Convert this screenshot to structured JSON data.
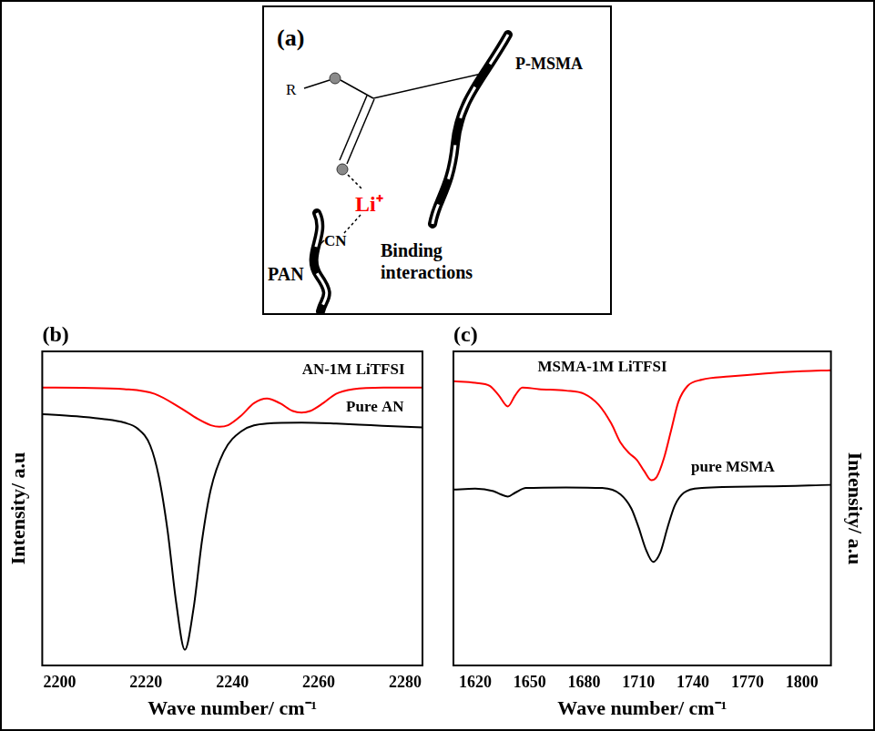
{
  "diagram": {
    "panel": "(a)",
    "substituent": "R",
    "polymer_1": "P-MSMA",
    "ion": "Li⁺",
    "group": "CN",
    "polymer_2": "PAN",
    "caption": "Binding interactions"
  },
  "chart_data": [
    {
      "type": "line",
      "panel": "(b)",
      "x_label": "Wave number/ cm⁻¹",
      "y_label": "Intensity/ a.u",
      "xlim": [
        2196,
        2284
      ],
      "xticks": [
        2200,
        2220,
        2240,
        2260,
        2280
      ],
      "ylim": [
        0,
        100
      ],
      "tick_labels": "x",
      "grid": false,
      "series": [
        {
          "color": "#ff0000",
          "x": [
            2196,
            2205,
            2215,
            2222,
            2228,
            2232,
            2235,
            2237,
            2239,
            2242,
            2245,
            2248,
            2251,
            2254,
            2256,
            2258,
            2261,
            2264,
            2268,
            2275,
            2284
          ],
          "values": [
            88.5,
            88.4,
            88,
            86.5,
            82,
            78.5,
            76.5,
            76,
            76.5,
            79.5,
            83.5,
            85,
            83.5,
            81,
            80.5,
            81,
            83.5,
            86.5,
            88,
            88.5,
            88.5
          ]
        },
        {
          "color": "#000000",
          "x": [
            2196,
            2200,
            2205,
            2210,
            2215,
            2218,
            2221,
            2223,
            2225,
            2227,
            2229,
            2231,
            2233,
            2235,
            2238,
            2242,
            2248,
            2256,
            2264,
            2272,
            2280,
            2284
          ],
          "values": [
            80,
            79.7,
            79.2,
            78.5,
            77.3,
            75.5,
            70,
            60,
            43,
            20,
            5,
            18,
            40,
            56,
            68,
            74.5,
            77,
            77.3,
            77,
            76.5,
            76,
            75.8
          ]
        }
      ],
      "annotations": [
        {
          "text": "AN-1M LiTFSI",
          "x": 2268,
          "y": 94
        },
        {
          "text": "Pure AN",
          "x": 2273,
          "y": 82
        }
      ]
    },
    {
      "type": "line",
      "panel": "(c)",
      "x_label": "Wave number/ cm⁻¹",
      "y_label": "Intensity/ a.u",
      "xlim": [
        1608,
        1816
      ],
      "xticks": [
        1620,
        1650,
        1680,
        1710,
        1740,
        1770,
        1800
      ],
      "ylim": [
        0,
        100
      ],
      "tick_labels": "x",
      "grid": false,
      "series": [
        {
          "color": "#ff0000",
          "x": [
            1608,
            1620,
            1628,
            1633,
            1638,
            1642,
            1646,
            1655,
            1670,
            1680,
            1688,
            1695,
            1700,
            1705,
            1709,
            1713,
            1717,
            1720,
            1724,
            1728,
            1732,
            1737,
            1745,
            1760,
            1780,
            1800,
            1816
          ],
          "values": [
            90.5,
            90,
            89,
            86,
            82.5,
            86,
            88.5,
            88,
            87.5,
            86.5,
            83,
            77,
            71,
            67.5,
            65.5,
            62,
            59,
            60,
            66,
            75,
            84,
            89,
            91,
            92,
            93,
            93.7,
            94
          ]
        },
        {
          "color": "#000000",
          "x": [
            1608,
            1620,
            1630,
            1634,
            1638,
            1642,
            1648,
            1670,
            1690,
            1700,
            1706,
            1710,
            1714,
            1718,
            1722,
            1726,
            1730,
            1735,
            1745,
            1780,
            1816
          ],
          "values": [
            56,
            56.3,
            55.5,
            54.5,
            53.8,
            55,
            56.5,
            56.7,
            56.5,
            54.5,
            50,
            44,
            37,
            33,
            36,
            44,
            51,
            55,
            56.5,
            57,
            57.5
          ]
        }
      ],
      "annotations": [
        {
          "text": "MSMA-1M LiTFSI",
          "x": 1690,
          "y": 95
        },
        {
          "text": "pure MSMA",
          "x": 1762,
          "y": 63
        }
      ]
    }
  ]
}
